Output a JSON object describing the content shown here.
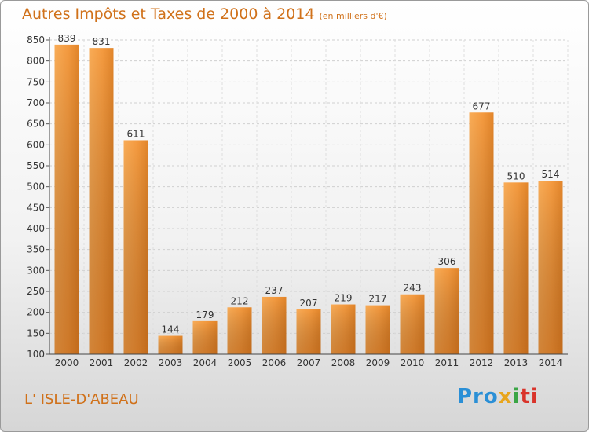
{
  "chart_data": {
    "type": "bar",
    "title": "Autres Impôts et Taxes de 2000 à 2014",
    "unit": "(en milliers d'€)",
    "categories": [
      "2000",
      "2001",
      "2002",
      "2003",
      "2004",
      "2005",
      "2006",
      "2007",
      "2008",
      "2009",
      "2010",
      "2011",
      "2012",
      "2013",
      "2014"
    ],
    "values": [
      839,
      831,
      611,
      144,
      179,
      212,
      237,
      207,
      219,
      217,
      243,
      306,
      677,
      510,
      514
    ],
    "ylim": [
      100,
      850
    ],
    "yticks": [
      100,
      150,
      200,
      250,
      300,
      350,
      400,
      450,
      500,
      550,
      600,
      650,
      700,
      750,
      800,
      850
    ],
    "grid": true,
    "colors": {
      "bar_light": "#f7a24a",
      "bar_dark": "#d4761f",
      "text": "#d0711a"
    }
  },
  "location": "L' ISLE-D'ABEAU",
  "brand": {
    "p1": "Pro",
    "p2": "x",
    "p3": "i",
    "p4": "ti"
  }
}
